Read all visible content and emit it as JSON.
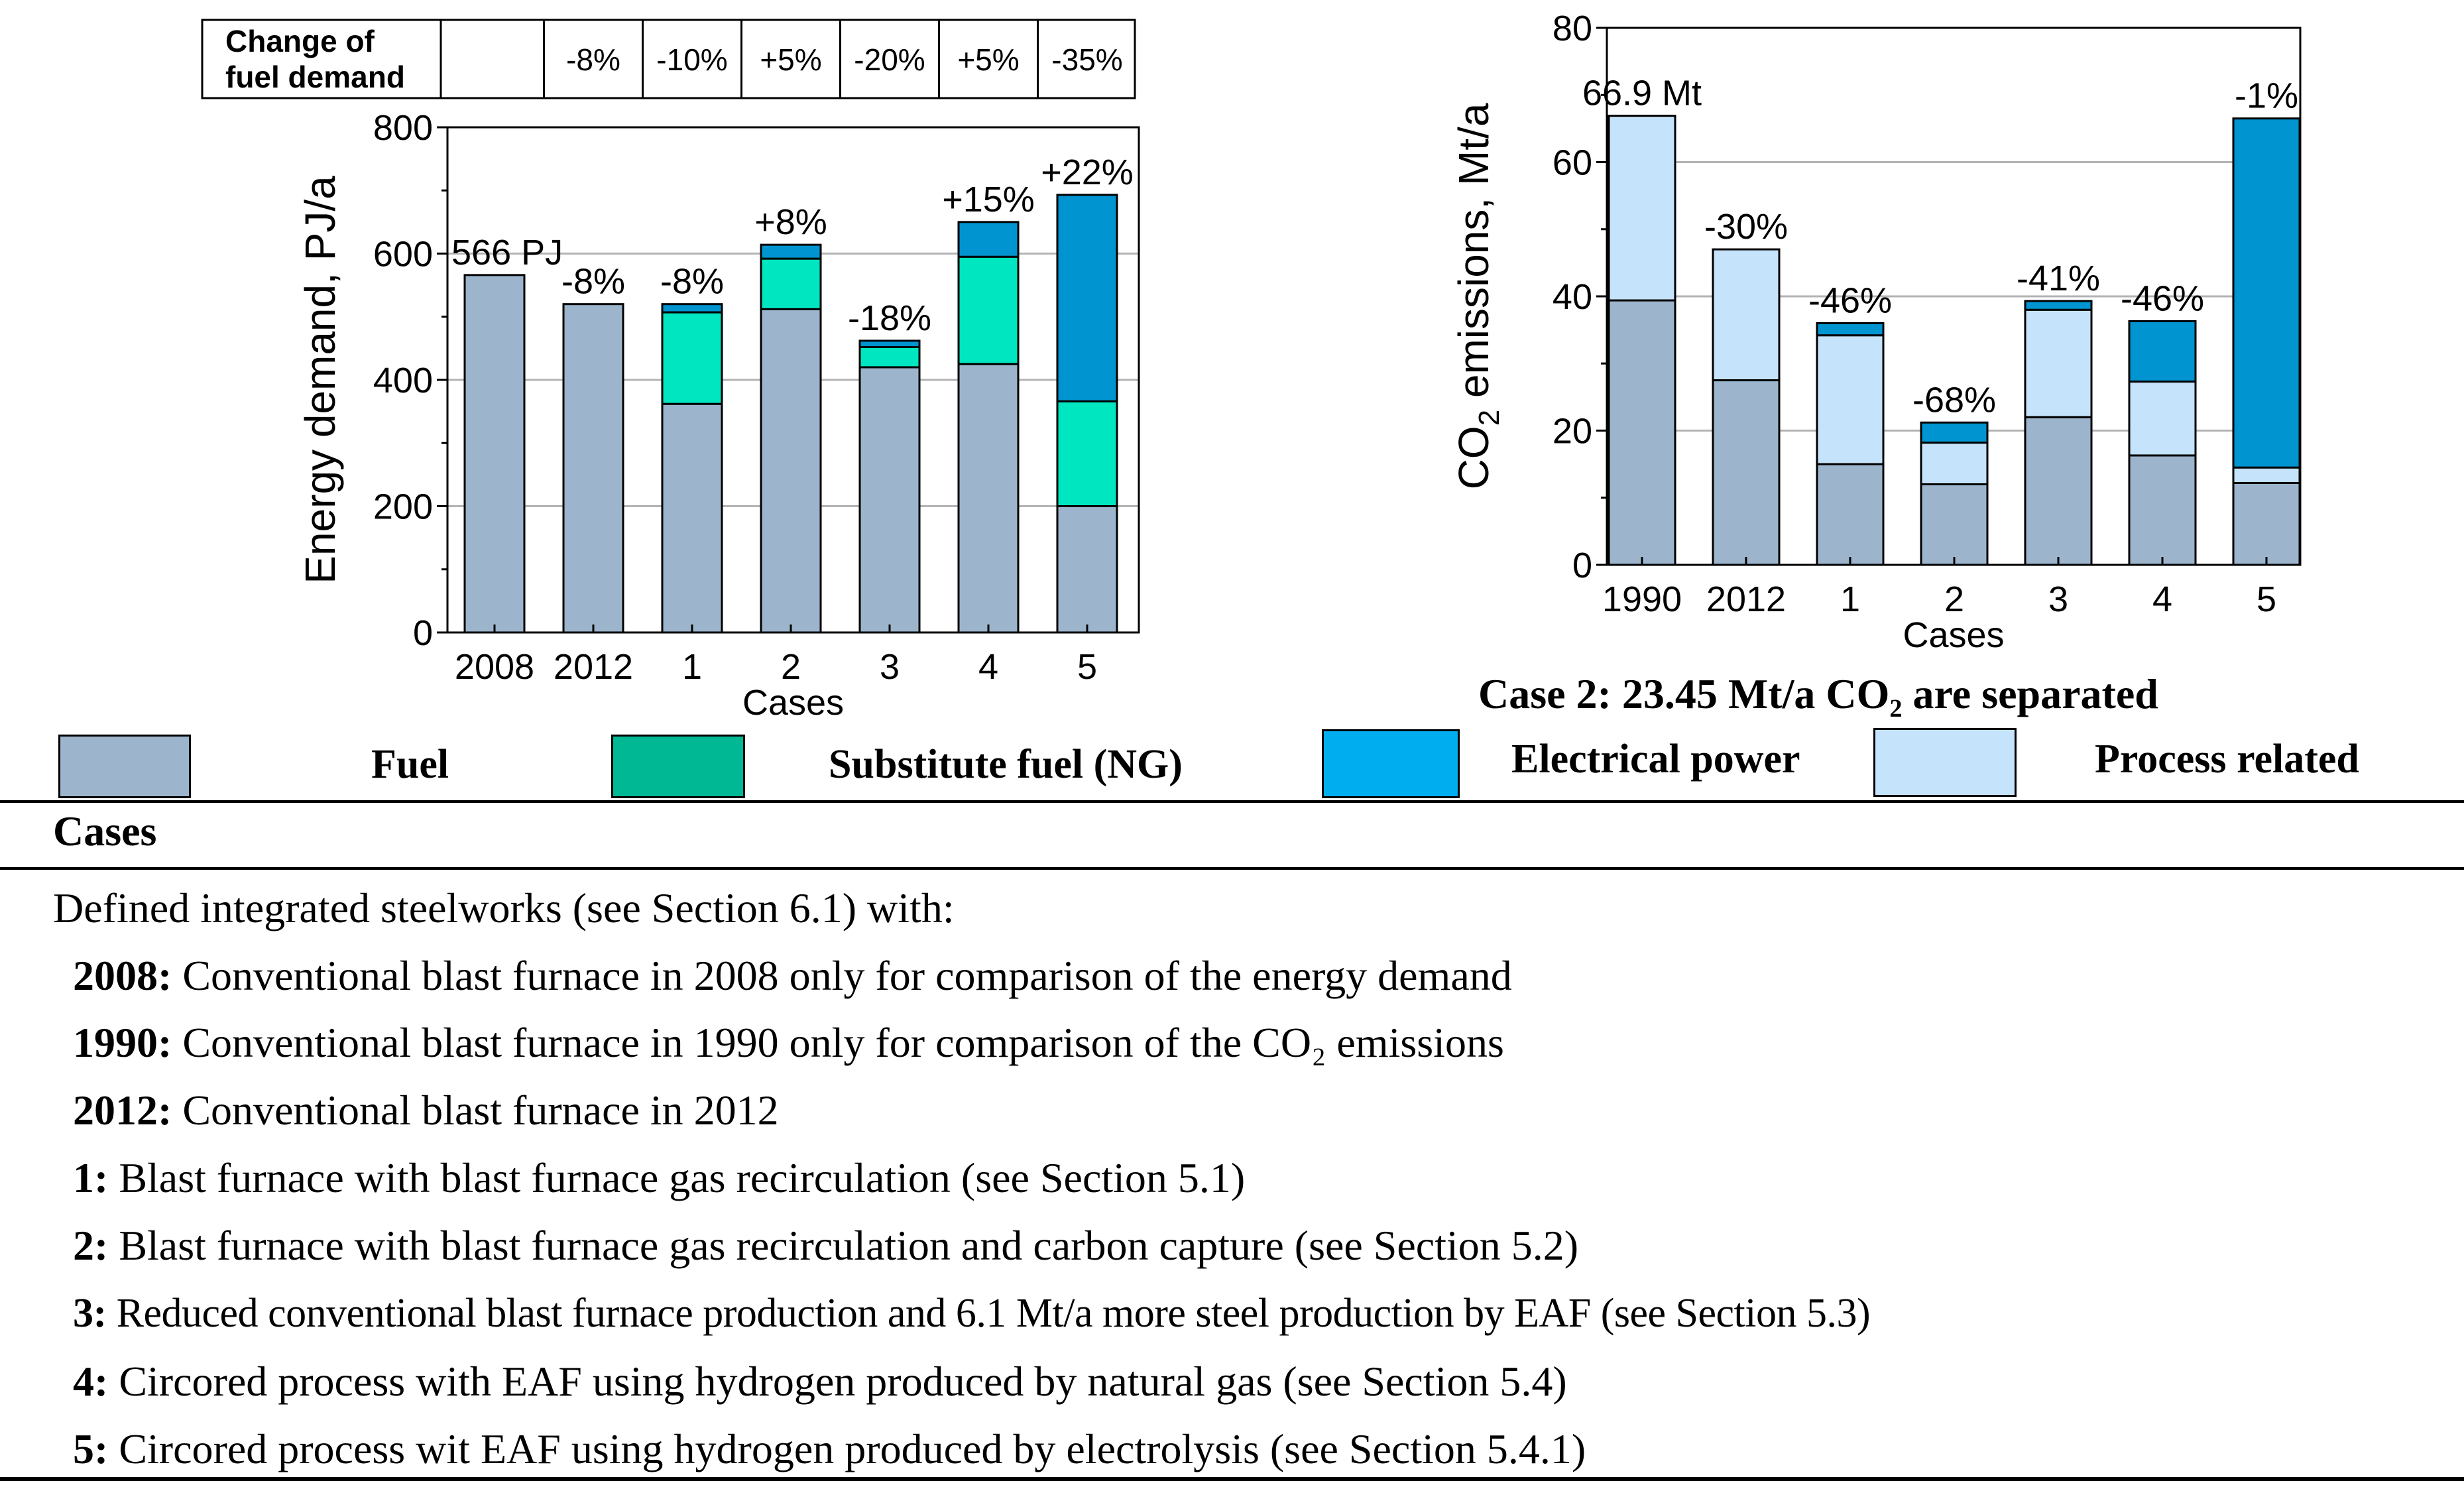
{
  "chart_data": [
    {
      "type": "bar",
      "stacked": true,
      "title": "",
      "xlabel": "Cases",
      "ylabel": "Energy demand, PJ/a",
      "ylim": [
        0,
        800
      ],
      "yticks": [
        0,
        200,
        400,
        600,
        800
      ],
      "grid": true,
      "categories": [
        "2008",
        "2012",
        "1",
        "2",
        "3",
        "4",
        "5"
      ],
      "series": [
        {
          "name": "Fuel",
          "color": "#9db5cc",
          "values": [
            566,
            520,
            362,
            512,
            420,
            425,
            200
          ]
        },
        {
          "name": "Substitute fuel (NG)",
          "color": "#00e6c0",
          "values": [
            0,
            0,
            145,
            80,
            32,
            170,
            166
          ]
        },
        {
          "name": "Electrical power",
          "color": "#0094d0",
          "values": [
            0,
            0,
            13,
            22,
            10,
            55,
            327
          ]
        }
      ],
      "bar_labels": [
        "566 PJ",
        "-8%",
        "-8%",
        "+8%",
        "-18%",
        "+15%",
        "+22%"
      ],
      "fuel_demand_table": {
        "header": "Change of fuel demand",
        "cells": [
          "",
          "-8%",
          "-10%",
          "+5%",
          "-20%",
          "+5%",
          "-35%"
        ]
      }
    },
    {
      "type": "bar",
      "stacked": true,
      "title": "",
      "xlabel": "Cases",
      "ylabel": "CO2 emissions, Mt/a",
      "ylabel_parts": {
        "main": "CO",
        "sub": "2",
        "rest": " emissions, Mt/a"
      },
      "ylim": [
        0,
        80
      ],
      "yticks": [
        0,
        20,
        40,
        60,
        80
      ],
      "grid": true,
      "categories": [
        "1990",
        "2012",
        "1",
        "2",
        "3",
        "4",
        "5"
      ],
      "series": [
        {
          "name": "Fuel",
          "color": "#9db5cc",
          "values": [
            39.4,
            27.5,
            15,
            12,
            22,
            16.3,
            12.2
          ]
        },
        {
          "name": "Process related",
          "color": "#c5e3fb",
          "values": [
            27.5,
            19.5,
            19.2,
            6.2,
            16,
            11,
            2.3
          ]
        },
        {
          "name": "Electrical power",
          "color": "#0094d0",
          "values": [
            0,
            0,
            1.8,
            3,
            1.3,
            9,
            52
          ]
        }
      ],
      "bar_labels": [
        "66.9 Mt",
        "-30%",
        "-46%",
        "-68%",
        "-41%",
        "-46%",
        "-1%"
      ]
    }
  ],
  "note": "Case 2: 23.45 Mt/a CO₂ are separated",
  "legend": {
    "fuel": {
      "label": "Fuel",
      "color": "#9db5cc"
    },
    "substitute": {
      "label": "Substitute fuel (NG)",
      "color": "#00b894"
    },
    "electrical": {
      "label": "Electrical power",
      "color": "#00aef0"
    },
    "process": {
      "label": "Process related",
      "color": "#c5e3fb"
    }
  },
  "cases_table": {
    "heading": "Cases",
    "intro": "Defined integrated steelworks (see Section 6.1) with:",
    "items": [
      {
        "key": "2008:",
        "text": "Conventional blast furnace in 2008 only for comparison of the energy demand"
      },
      {
        "key": "1990:",
        "text": "Conventional blast furnace in 1990 only for comparison of the CO₂ emissions"
      },
      {
        "key": "2012:",
        "text": "Conventional blast furnace in 2012"
      },
      {
        "key": "1:",
        "text": "Blast furnace with blast furnace gas recirculation (see Section 5.1)"
      },
      {
        "key": "2:",
        "text": "Blast furnace with blast furnace gas recirculation and carbon capture (see Section 5.2)"
      },
      {
        "key": "3:",
        "text": "Reduced conventional blast furnace production and 6.1 Mt/a more steel production by EAF (see Section 5.3)"
      },
      {
        "key": "4:",
        "text": "Circored process with EAF using hydrogen produced by natural gas (see Section 5.4)"
      },
      {
        "key": "5:",
        "text": "Circored process wit EAF using hydrogen produced by electrolysis (see Section 5.4.1)"
      }
    ]
  }
}
